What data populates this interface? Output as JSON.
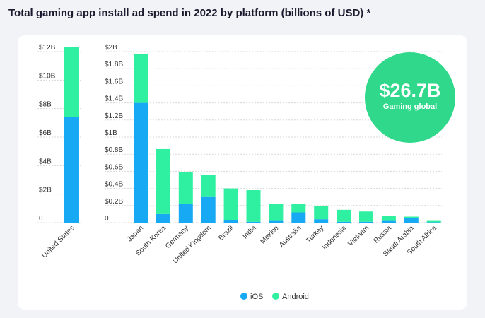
{
  "title": "Total gaming app install ad spend in 2022 by platform (billions of USD) *",
  "footnote": "",
  "badge": {
    "value": "$26.7B",
    "label": "Gaming global",
    "color": "#2fd88a"
  },
  "colors": {
    "ios": "#17a9f3",
    "android": "#2ef0a0",
    "grid": "#d8d8d8",
    "axis": "#aaaaaa"
  },
  "chart_data": [
    {
      "type": "bar",
      "stacked": true,
      "categories": [
        "United States"
      ],
      "series": [
        {
          "name": "iOS",
          "values": [
            7.4
          ]
        },
        {
          "name": "Android",
          "values": [
            4.9
          ]
        }
      ],
      "ylim": [
        0,
        12
      ],
      "yticks": [
        0,
        2,
        4,
        6,
        8,
        10,
        12
      ],
      "ytick_labels": [
        "0",
        "$2B",
        "$4B",
        "$6B",
        "$8B",
        "$10B",
        "$12B"
      ],
      "grid": true
    },
    {
      "type": "bar",
      "stacked": true,
      "categories": [
        "Japan",
        "South Korea",
        "Germany",
        "United Kingdom",
        "Brazil",
        "India",
        "Mexico",
        "Australia",
        "Turkey",
        "Indonesia",
        "Vietnam",
        "Russia",
        "Saudi Arabia",
        "South Africa"
      ],
      "series": [
        {
          "name": "iOS",
          "values": [
            1.4,
            0.1,
            0.22,
            0.3,
            0.03,
            0.01,
            0.02,
            0.12,
            0.04,
            0.01,
            0.01,
            0.02,
            0.05,
            0.005
          ]
        },
        {
          "name": "Android",
          "values": [
            0.57,
            0.76,
            0.37,
            0.26,
            0.37,
            0.37,
            0.2,
            0.1,
            0.15,
            0.14,
            0.12,
            0.06,
            0.02,
            0.015
          ]
        }
      ],
      "ylim": [
        0,
        2
      ],
      "yticks": [
        0,
        0.2,
        0.4,
        0.6,
        0.8,
        1.0,
        1.2,
        1.4,
        1.6,
        1.8,
        2.0
      ],
      "ytick_labels": [
        "0",
        "$0.2B",
        "$0.4B",
        "$0.6B",
        "$0.8B",
        "$1B",
        "$1.2B",
        "$1.4B",
        "$1.6B",
        "$1.8B",
        "$2B"
      ],
      "grid": true,
      "legend": "bottom"
    }
  ]
}
